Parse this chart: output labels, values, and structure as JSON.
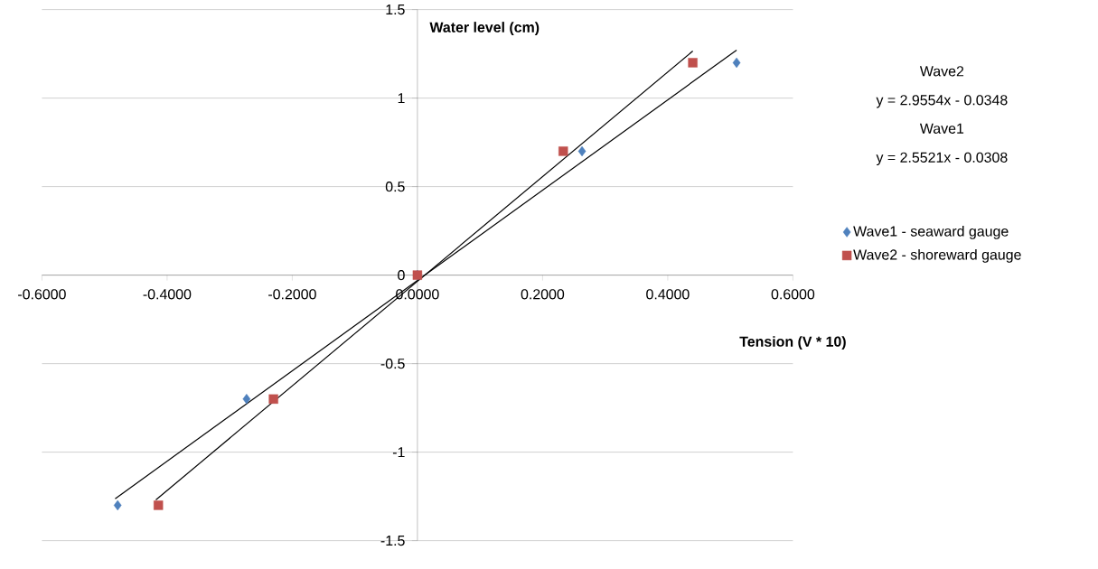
{
  "chart_data": {
    "type": "scatter",
    "xlabel": "Tension (V * 10)",
    "ylabel": "Water level (cm)",
    "xlim": [
      -0.6,
      0.6
    ],
    "ylim": [
      -1.5,
      1.5
    ],
    "xticks": [
      {
        "value": -0.6,
        "label": "-0.6000"
      },
      {
        "value": -0.4,
        "label": "-0.4000"
      },
      {
        "value": -0.2,
        "label": "-0.2000"
      },
      {
        "value": 0,
        "label": "0.0000"
      },
      {
        "value": 0.2,
        "label": "0.2000"
      },
      {
        "value": 0.4,
        "label": "0.4000"
      },
      {
        "value": 0.6,
        "label": "0.6000"
      }
    ],
    "yticks": [
      -1.5,
      -1,
      -0.5,
      0,
      0.5,
      1,
      1.5
    ],
    "grid": "y",
    "legend": "right",
    "series": [
      {
        "name": "Wave1 - seaward gauge",
        "color": "#4f81bd",
        "marker": "diamond",
        "x": [
          -0.479,
          -0.273,
          0,
          0.263,
          0.51
        ],
        "values": [
          -1.3,
          -0.7,
          0,
          0.7,
          1.2
        ]
      },
      {
        "name": "Wave2 - shoreward gauge",
        "color": "#c0504d",
        "marker": "square",
        "x": [
          -0.414,
          -0.23,
          0,
          0.233,
          0.44
        ],
        "values": [
          -1.3,
          -0.7,
          0,
          0.7,
          1.2
        ]
      },
      {
        "type": "line",
        "color": "#000000",
        "x": [
          -0.483,
          0.51
        ],
        "values": [
          -1.263,
          1.271
        ]
      },
      {
        "type": "line",
        "color": "#000000",
        "x": [
          -0.418,
          0.44
        ],
        "values": [
          -1.27,
          1.266
        ]
      }
    ],
    "annotations": [
      "Wave2",
      "y = 2.9554x - 0.0348",
      "Wave1",
      "y = 2.5521x - 0.0308"
    ]
  }
}
